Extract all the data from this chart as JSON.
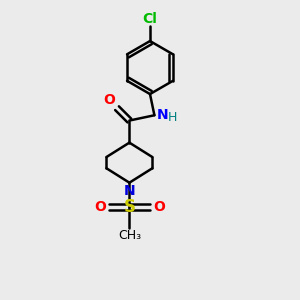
{
  "background_color": "#ebebeb",
  "bond_color": "#000000",
  "bond_width": 1.8,
  "atom_colors": {
    "N_amide": "#0000ff",
    "N_pip": "#0000dd",
    "O": "#ff0000",
    "S": "#cccc00",
    "Cl": "#00bb00",
    "H": "#008080"
  },
  "font_size": 10,
  "fig_size": [
    3.0,
    3.0
  ],
  "dpi": 100,
  "xlim": [
    0,
    10
  ],
  "ylim": [
    0,
    10
  ]
}
